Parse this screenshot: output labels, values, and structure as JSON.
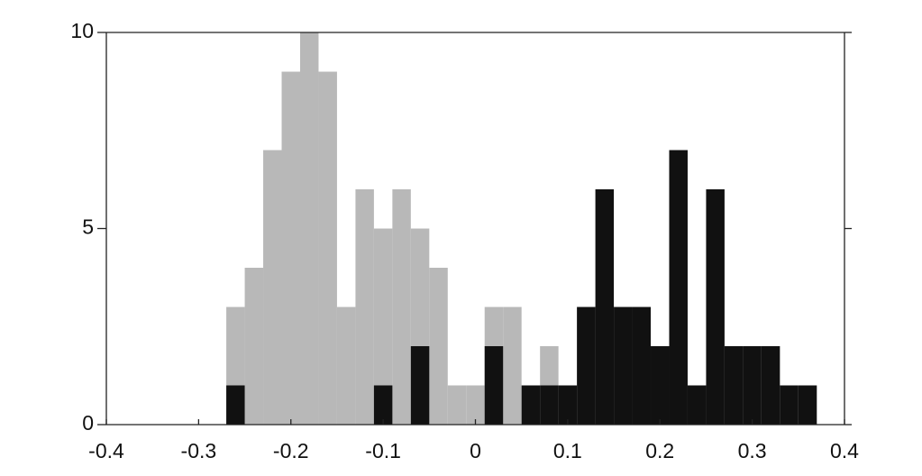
{
  "chart_data": {
    "type": "histogram",
    "bins": [
      -0.27,
      -0.25,
      -0.23,
      -0.21,
      -0.19,
      -0.17,
      -0.15,
      -0.13,
      -0.11,
      -0.09,
      -0.07,
      -0.05,
      -0.03,
      -0.01,
      0.01,
      0.03,
      0.05,
      0.07,
      0.09,
      0.11,
      0.13,
      0.15,
      0.17,
      0.19,
      0.21,
      0.23,
      0.25,
      0.27,
      0.29,
      0.31,
      0.33,
      0.35,
      0.37
    ],
    "series": [
      {
        "color": "#b8b8b8",
        "values": [
          3,
          4,
          7,
          9,
          10,
          9,
          3,
          6,
          5,
          6,
          5,
          4,
          1,
          1,
          3,
          3,
          0,
          2,
          0,
          0,
          0,
          0,
          0,
          0,
          0,
          0,
          0,
          0,
          0,
          0,
          0,
          0
        ]
      },
      {
        "color": "#111111",
        "values": [
          1,
          0,
          0,
          0,
          0,
          0,
          0,
          0,
          1,
          0,
          2,
          0,
          0,
          0,
          2,
          0,
          1,
          1,
          1,
          3,
          6,
          3,
          3,
          2,
          7,
          1,
          6,
          2,
          2,
          2,
          1,
          1
        ]
      }
    ],
    "xlim": [
      -0.4,
      0.4
    ],
    "xticks": [
      -0.4,
      -0.3,
      -0.2,
      -0.1,
      0,
      0.1,
      0.2,
      0.3,
      0.4
    ],
    "ylim": [
      0,
      10
    ],
    "yticks": [
      0,
      5,
      10
    ]
  }
}
